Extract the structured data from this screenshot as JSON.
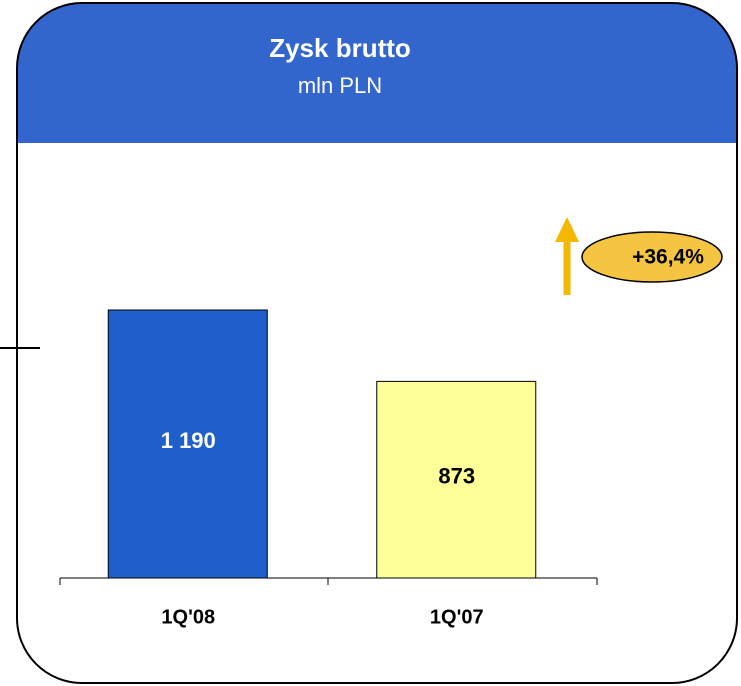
{
  "chart_data": {
    "type": "bar",
    "title": "Zysk brutto",
    "subtitle": "mln PLN",
    "categories": [
      "1Q'08",
      "1Q'07"
    ],
    "values": [
      1190,
      873
    ],
    "value_labels": [
      "1 190",
      "873"
    ],
    "colors": [
      "#1f5fcc",
      "#ffff99"
    ],
    "label_colors": [
      "#ffffff",
      "#000000"
    ],
    "annotation": "+36,4%"
  }
}
